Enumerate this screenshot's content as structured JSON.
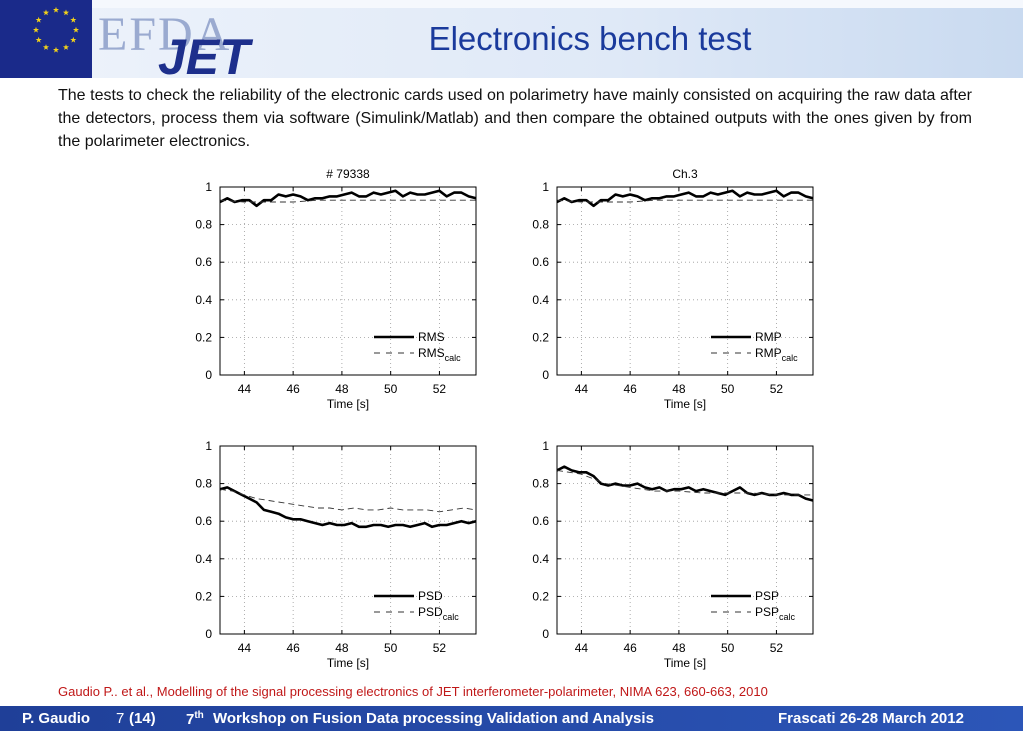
{
  "header": {
    "title": "Electronics bench test",
    "logo_text_efda": "EFDA",
    "logo_text_jet": "JET"
  },
  "intro": "The tests to check the reliability of the electronic cards used on polarimetry have mainly consisted on acquiring the raw data after the detectors, process them via software (Simulink/Matlab) and then compare the obtained outputs with the ones given by from the polarimeter electronics.",
  "colors": {
    "title": "#1a3a9c",
    "footer_bg": "#2447a8",
    "reference": "#c01818",
    "eu_flag": "#1a2a8a",
    "eu_stars": "#f2d21a"
  },
  "chart_data": [
    {
      "type": "line",
      "title": "#  79338",
      "xlabel": "Time [s]",
      "ylabel": "",
      "xlim": [
        43,
        53.5
      ],
      "ylim": [
        0,
        1
      ],
      "xticks": [
        44,
        46,
        48,
        50,
        52
      ],
      "yticks": [
        0,
        0.2,
        0.4,
        0.6,
        0.8,
        1
      ],
      "grid": true,
      "legend_position": "bottom-right",
      "series": [
        {
          "name": "RMS",
          "style": "solid",
          "x": [
            43,
            43.3,
            43.6,
            43.9,
            44.2,
            44.5,
            44.8,
            45.1,
            45.4,
            45.7,
            46,
            46.3,
            46.6,
            46.9,
            47.2,
            47.5,
            47.8,
            48.1,
            48.4,
            48.7,
            49,
            49.3,
            49.6,
            49.9,
            50.2,
            50.5,
            50.8,
            51.1,
            51.4,
            51.7,
            52,
            52.3,
            52.6,
            52.9,
            53.2,
            53.5
          ],
          "y": [
            0.92,
            0.94,
            0.92,
            0.93,
            0.93,
            0.9,
            0.93,
            0.93,
            0.96,
            0.95,
            0.96,
            0.95,
            0.93,
            0.94,
            0.94,
            0.95,
            0.95,
            0.96,
            0.97,
            0.95,
            0.95,
            0.97,
            0.96,
            0.97,
            0.98,
            0.95,
            0.97,
            0.96,
            0.96,
            0.97,
            0.98,
            0.95,
            0.97,
            0.97,
            0.95,
            0.94
          ]
        },
        {
          "name": "RMS",
          "name_sub": "calc",
          "style": "dashed",
          "x": [
            43,
            44,
            45,
            46,
            47,
            48,
            49,
            50,
            51,
            52,
            53,
            53.5
          ],
          "y": [
            0.93,
            0.92,
            0.92,
            0.92,
            0.93,
            0.93,
            0.93,
            0.93,
            0.93,
            0.93,
            0.93,
            0.93
          ]
        }
      ]
    },
    {
      "type": "line",
      "title": "Ch.3",
      "xlabel": "Time [s]",
      "ylabel": "",
      "xlim": [
        43,
        53.5
      ],
      "ylim": [
        0,
        1
      ],
      "xticks": [
        44,
        46,
        48,
        50,
        52
      ],
      "yticks": [
        0,
        0.2,
        0.4,
        0.6,
        0.8,
        1
      ],
      "grid": true,
      "legend_position": "bottom-right",
      "series": [
        {
          "name": "RMP",
          "style": "solid",
          "x": [
            43,
            43.3,
            43.6,
            43.9,
            44.2,
            44.5,
            44.8,
            45.1,
            45.4,
            45.7,
            46,
            46.3,
            46.6,
            46.9,
            47.2,
            47.5,
            47.8,
            48.1,
            48.4,
            48.7,
            49,
            49.3,
            49.6,
            49.9,
            50.2,
            50.5,
            50.8,
            51.1,
            51.4,
            51.7,
            52,
            52.3,
            52.6,
            52.9,
            53.2,
            53.5
          ],
          "y": [
            0.92,
            0.94,
            0.92,
            0.93,
            0.93,
            0.9,
            0.93,
            0.93,
            0.96,
            0.95,
            0.96,
            0.95,
            0.93,
            0.94,
            0.94,
            0.95,
            0.95,
            0.96,
            0.97,
            0.95,
            0.95,
            0.97,
            0.96,
            0.97,
            0.98,
            0.95,
            0.97,
            0.96,
            0.96,
            0.97,
            0.98,
            0.95,
            0.97,
            0.97,
            0.95,
            0.94
          ]
        },
        {
          "name": "RMP",
          "name_sub": "calc",
          "style": "dashed",
          "x": [
            43,
            44,
            45,
            46,
            47,
            48,
            49,
            50,
            51,
            52,
            53,
            53.5
          ],
          "y": [
            0.93,
            0.92,
            0.92,
            0.92,
            0.93,
            0.93,
            0.93,
            0.93,
            0.93,
            0.93,
            0.93,
            0.93
          ]
        }
      ]
    },
    {
      "type": "line",
      "title": "",
      "xlabel": "Time [s]",
      "ylabel": "",
      "xlim": [
        43,
        53.5
      ],
      "ylim": [
        0,
        1
      ],
      "xticks": [
        44,
        46,
        48,
        50,
        52
      ],
      "yticks": [
        0,
        0.2,
        0.4,
        0.6,
        0.8,
        1
      ],
      "grid": true,
      "legend_position": "bottom-right",
      "series": [
        {
          "name": "PSD",
          "style": "solid",
          "x": [
            43,
            43.3,
            43.6,
            43.9,
            44.2,
            44.5,
            44.8,
            45.1,
            45.4,
            45.7,
            46,
            46.3,
            46.6,
            46.9,
            47.2,
            47.5,
            47.8,
            48.1,
            48.4,
            48.7,
            49,
            49.3,
            49.6,
            49.9,
            50.2,
            50.5,
            50.8,
            51.1,
            51.4,
            51.7,
            52,
            52.3,
            52.6,
            52.9,
            53.2,
            53.5
          ],
          "y": [
            0.77,
            0.78,
            0.76,
            0.74,
            0.72,
            0.7,
            0.66,
            0.65,
            0.64,
            0.62,
            0.61,
            0.61,
            0.6,
            0.59,
            0.58,
            0.59,
            0.58,
            0.58,
            0.59,
            0.57,
            0.57,
            0.58,
            0.58,
            0.57,
            0.58,
            0.58,
            0.57,
            0.58,
            0.59,
            0.57,
            0.58,
            0.58,
            0.59,
            0.6,
            0.59,
            0.6
          ]
        },
        {
          "name": "PSD",
          "name_sub": "calc",
          "style": "dashed",
          "x": [
            43,
            43.5,
            44,
            44.5,
            45,
            45.5,
            46,
            46.5,
            47,
            47.5,
            48,
            48.5,
            49,
            49.5,
            50,
            50.5,
            51,
            51.5,
            52,
            52.5,
            53,
            53.5
          ],
          "y": [
            0.77,
            0.76,
            0.74,
            0.72,
            0.71,
            0.7,
            0.69,
            0.68,
            0.67,
            0.67,
            0.66,
            0.67,
            0.66,
            0.66,
            0.67,
            0.66,
            0.66,
            0.66,
            0.65,
            0.66,
            0.67,
            0.66
          ]
        }
      ]
    },
    {
      "type": "line",
      "title": "",
      "xlabel": "Time [s]",
      "ylabel": "",
      "xlim": [
        43,
        53.5
      ],
      "ylim": [
        0,
        1
      ],
      "xticks": [
        44,
        46,
        48,
        50,
        52
      ],
      "yticks": [
        0,
        0.2,
        0.4,
        0.6,
        0.8,
        1
      ],
      "grid": true,
      "legend_position": "bottom-right",
      "series": [
        {
          "name": "PSP",
          "style": "solid",
          "x": [
            43,
            43.3,
            43.6,
            43.9,
            44.2,
            44.5,
            44.8,
            45.1,
            45.4,
            45.7,
            46,
            46.3,
            46.6,
            46.9,
            47.2,
            47.5,
            47.8,
            48.1,
            48.4,
            48.7,
            49,
            49.3,
            49.6,
            49.9,
            50.2,
            50.5,
            50.8,
            51.1,
            51.4,
            51.7,
            52,
            52.3,
            52.6,
            52.9,
            53.2,
            53.5
          ],
          "y": [
            0.87,
            0.89,
            0.87,
            0.86,
            0.86,
            0.84,
            0.8,
            0.79,
            0.8,
            0.79,
            0.79,
            0.8,
            0.78,
            0.77,
            0.78,
            0.76,
            0.77,
            0.77,
            0.78,
            0.76,
            0.77,
            0.76,
            0.75,
            0.74,
            0.76,
            0.78,
            0.75,
            0.74,
            0.75,
            0.74,
            0.74,
            0.75,
            0.74,
            0.74,
            0.72,
            0.71
          ]
        },
        {
          "name": "PSP",
          "name_sub": "calc",
          "style": "dashed",
          "x": [
            43,
            44,
            45,
            46,
            47,
            48,
            49,
            50,
            51,
            52,
            53,
            53.5
          ],
          "y": [
            0.87,
            0.85,
            0.8,
            0.78,
            0.76,
            0.76,
            0.75,
            0.75,
            0.75,
            0.74,
            0.74,
            0.74
          ]
        }
      ]
    }
  ],
  "reference": "Gaudio P.. et al., Modelling of the signal processing electronics of JET interferometer-polarimeter, NIMA 623, 660-663, 2010",
  "footer": {
    "author": "P. Gaudio",
    "page": "7",
    "total": "(14)",
    "workshop_num": "7",
    "workshop_sup": "th",
    "workshop": "Workshop on Fusion Data processing Validation and Analysis",
    "venue": "Frascati 26-28 March 2012"
  }
}
